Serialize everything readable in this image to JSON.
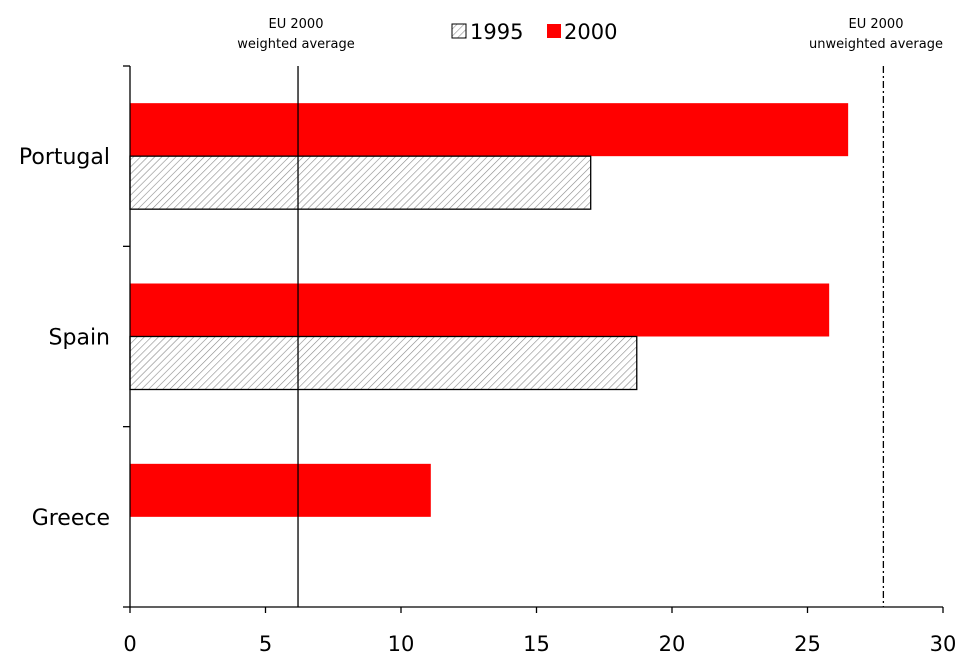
{
  "chart_data": {
    "type": "bar",
    "orientation": "horizontal",
    "categories": [
      "Portugal",
      "Spain",
      "Greece"
    ],
    "series": [
      {
        "name": "1995",
        "values": [
          17.0,
          18.7,
          null
        ],
        "color": "#ffffff",
        "pattern": "diagonal-hatch"
      },
      {
        "name": "2000",
        "values": [
          26.5,
          25.8,
          11.1
        ],
        "color": "#ff0000"
      }
    ],
    "xlim": [
      0,
      30
    ],
    "xticks": [
      0,
      5,
      10,
      15,
      20,
      25,
      30
    ],
    "legend_position": "top-center",
    "grid": false,
    "reference_lines": [
      {
        "line1": "EU 2000",
        "line2": "weighted average",
        "value": 6.2,
        "style": "solid"
      },
      {
        "line1": "EU 2000",
        "line2": "unweighted average",
        "value": 27.8,
        "style": "dash-dot"
      }
    ]
  }
}
